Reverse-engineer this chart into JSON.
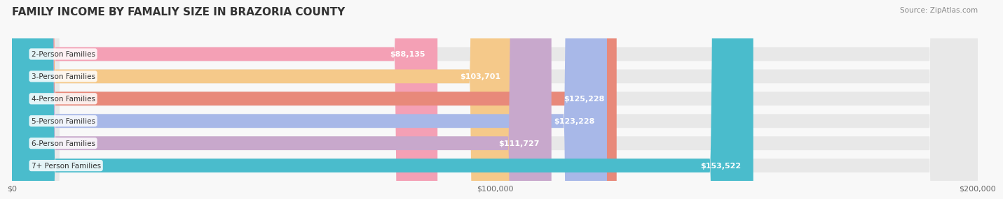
{
  "title": "FAMILY INCOME BY FAMALIY SIZE IN BRAZORIA COUNTY",
  "source": "Source: ZipAtlas.com",
  "categories": [
    "2-Person Families",
    "3-Person Families",
    "4-Person Families",
    "5-Person Families",
    "6-Person Families",
    "7+ Person Families"
  ],
  "values": [
    88135,
    103701,
    125228,
    123228,
    111727,
    153522
  ],
  "labels": [
    "$88,135",
    "$103,701",
    "$125,228",
    "$123,228",
    "$111,727",
    "$153,522"
  ],
  "bar_colors": [
    "#f4a0b5",
    "#f5c98a",
    "#e8897a",
    "#a8b8e8",
    "#c8a8cc",
    "#4abccc"
  ],
  "background_color": "#f8f8f8",
  "xlim": [
    0,
    200000
  ],
  "xticklabels": [
    "$0",
    "$100,000",
    "$200,000"
  ],
  "title_fontsize": 11,
  "bar_height": 0.62
}
